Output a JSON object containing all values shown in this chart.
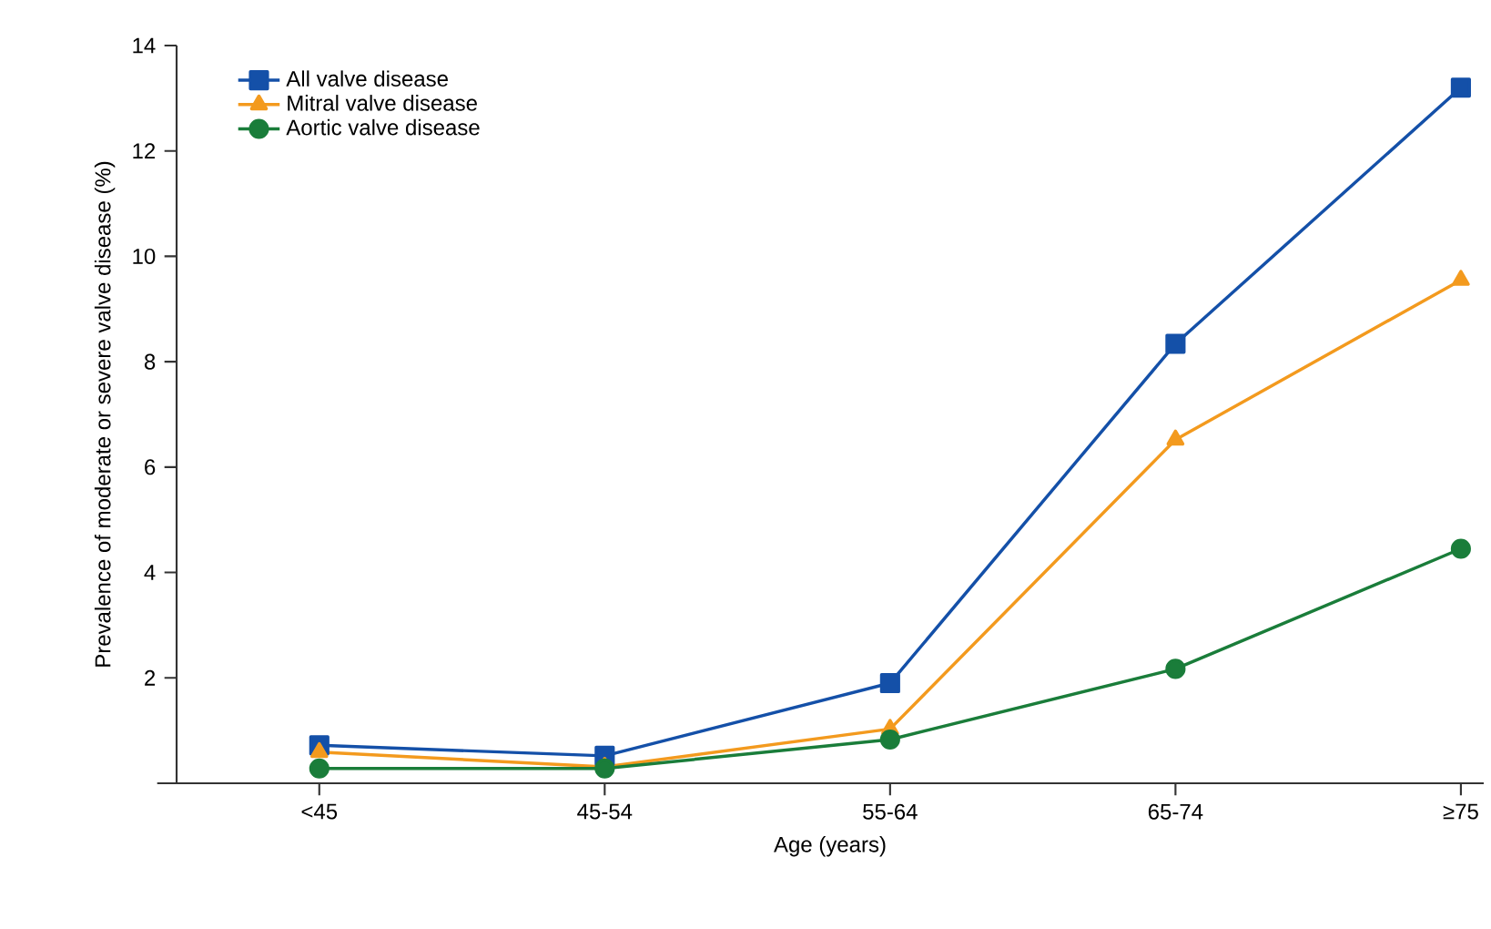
{
  "chart_data": {
    "type": "line",
    "xlabel": "Age (years)",
    "ylabel": "Prevalence of moderate or severe valve disease (%)",
    "categories": [
      "<45",
      "45-54",
      "55-64",
      "65-74",
      "≥75"
    ],
    "series": [
      {
        "name": "All valve disease",
        "color": "#1450a8",
        "marker": "square",
        "values": [
          0.72,
          0.52,
          1.9,
          8.34,
          13.2
        ]
      },
      {
        "name": "Mitral valve disease",
        "color": "#f39a1e",
        "marker": "triangle",
        "values": [
          0.59,
          0.31,
          1.03,
          6.52,
          9.55
        ]
      },
      {
        "name": "Aortic valve disease",
        "color": "#1a7d3a",
        "marker": "circle",
        "values": [
          0.28,
          0.28,
          0.83,
          2.17,
          4.45
        ]
      }
    ],
    "ylim": [
      0,
      14
    ],
    "yticks": [
      2,
      4,
      6,
      8,
      10,
      12,
      14
    ],
    "grid": false,
    "legend": "top left",
    "line_style": "solid"
  }
}
